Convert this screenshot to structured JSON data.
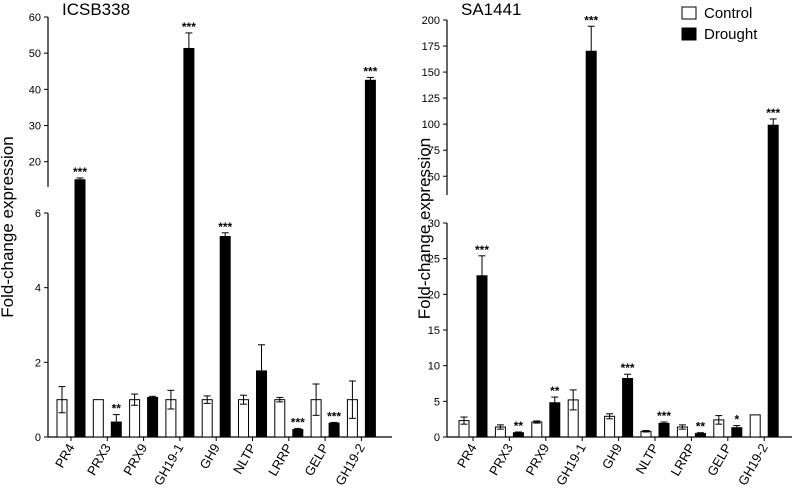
{
  "chart_data": [
    {
      "type": "bar",
      "title": "ICSB338",
      "ylabel": "Fold-change expression",
      "categories": [
        "PR4",
        "PRX3",
        "PRX9",
        "GH19-1",
        "GH9",
        "NLTP",
        "LRRP",
        "GELP",
        "GH19-2"
      ],
      "y_axis": "broken",
      "ylim_lower": [
        0,
        6
      ],
      "ylim_upper": [
        13,
        60
      ],
      "yticks_lower": [
        "0",
        "2",
        "4",
        "6"
      ],
      "yticks_upper": [
        "20",
        "30",
        "40",
        "50",
        "60"
      ],
      "series": [
        {
          "name": "Control",
          "color": "#ffffff",
          "values": [
            1.0,
            1.0,
            1.0,
            1.0,
            1.0,
            1.0,
            1.0,
            1.0,
            1.0
          ],
          "errors": [
            0.35,
            0.0,
            0.15,
            0.25,
            0.1,
            0.12,
            0.06,
            0.42,
            0.5
          ]
        },
        {
          "name": "Drought",
          "color": "#000000",
          "values": [
            15.0,
            0.4,
            1.06,
            51.3,
            5.37,
            1.77,
            0.2,
            0.37,
            42.5
          ],
          "errors": [
            0.5,
            0.2,
            0.03,
            4.3,
            0.1,
            0.7,
            0.03,
            0.02,
            0.8
          ]
        }
      ],
      "significance": [
        "***",
        "**",
        "",
        "***",
        "***",
        "",
        "***",
        "***",
        "***"
      ]
    },
    {
      "type": "bar",
      "title": "SA1441",
      "ylabel": "Fold-change expression",
      "categories": [
        "PR4",
        "PRX3",
        "PRX9",
        "GH19-1",
        "GH9",
        "NLTP",
        "LRRP",
        "GELP",
        "GH19-2"
      ],
      "y_axis": "broken",
      "ylim_lower": [
        0,
        30
      ],
      "ylim_upper": [
        32,
        200
      ],
      "yticks_lower": [
        "0",
        "5",
        "10",
        "15",
        "20",
        "25",
        "30"
      ],
      "yticks_upper": [
        "50",
        "75",
        "100",
        "125",
        "150",
        "175",
        "200"
      ],
      "series": [
        {
          "name": "Control",
          "color": "#ffffff",
          "values": [
            2.3,
            1.4,
            2.1,
            5.2,
            2.9,
            0.8,
            1.4,
            2.4,
            3.1
          ],
          "errors": [
            0.5,
            0.3,
            0.15,
            1.4,
            0.35,
            0.1,
            0.3,
            0.6,
            0.0
          ]
        },
        {
          "name": "Drought",
          "color": "#000000",
          "values": [
            22.6,
            0.6,
            4.8,
            170.0,
            8.2,
            1.9,
            0.5,
            1.3,
            99.0
          ],
          "errors": [
            2.8,
            0.1,
            0.8,
            24.0,
            0.6,
            0.2,
            0.1,
            0.3,
            6.0
          ]
        }
      ],
      "significance": [
        "***",
        "**",
        "**",
        "***",
        "***",
        "***",
        "**",
        "*",
        "***"
      ]
    }
  ],
  "legend": {
    "placement": "top-right",
    "items": [
      "Control",
      "Drought"
    ]
  }
}
